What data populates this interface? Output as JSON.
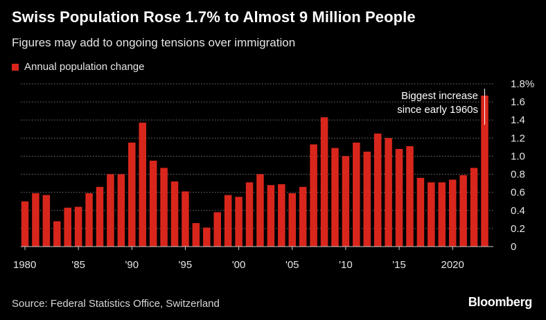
{
  "header": {
    "title": "Swiss Population Rose 1.7% to Almost 9 Million People",
    "subtitle": "Figures may add to ongoing tensions over immigration"
  },
  "footer": {
    "source": "Source: Federal Statistics Office, Switzerland",
    "brand": "Bloomberg"
  },
  "colors": {
    "bar": "#d9261c",
    "grid": "#777777",
    "axis": "#cccccc"
  },
  "chart_data": {
    "type": "bar",
    "title": "Swiss Population Rose 1.7% to Almost 9 Million People",
    "series": [
      {
        "name": "Annual population change",
        "x": [
          1980,
          1981,
          1982,
          1983,
          1984,
          1985,
          1986,
          1987,
          1988,
          1989,
          1990,
          1991,
          1992,
          1993,
          1994,
          1995,
          1996,
          1997,
          1998,
          1999,
          2000,
          2001,
          2002,
          2003,
          2004,
          2005,
          2006,
          2007,
          2008,
          2009,
          2010,
          2011,
          2012,
          2013,
          2014,
          2015,
          2016,
          2017,
          2018,
          2019,
          2020,
          2021,
          2022,
          2023
        ],
        "values": [
          0.5,
          0.59,
          0.57,
          0.28,
          0.43,
          0.44,
          0.59,
          0.66,
          0.8,
          0.8,
          1.15,
          1.37,
          0.95,
          0.87,
          0.72,
          0.61,
          0.26,
          0.21,
          0.38,
          0.57,
          0.55,
          0.71,
          0.8,
          0.68,
          0.69,
          0.59,
          0.66,
          1.13,
          1.43,
          1.09,
          1.0,
          1.15,
          1.05,
          1.25,
          1.2,
          1.08,
          1.11,
          0.76,
          0.71,
          0.71,
          0.74,
          0.79,
          0.87,
          1.67
        ]
      }
    ],
    "y_axis": {
      "min": 0,
      "max": 1.8,
      "step": 0.2,
      "side": "right",
      "tick_labels": [
        "0",
        "0.2",
        "0.4",
        "0.6",
        "0.8",
        "1.0",
        "1.2",
        "1.4",
        "1.6",
        "1.8%"
      ]
    },
    "x_axis": {
      "tick_years": [
        1980,
        1985,
        1990,
        1995,
        2000,
        2005,
        2010,
        2015,
        2020
      ],
      "tick_labels": [
        "1980",
        "'85",
        "'90",
        "'95",
        "'00",
        "'05",
        "'10",
        "'15",
        "2020"
      ]
    },
    "annotation": {
      "year": 2023,
      "lines": [
        "Biggest increase",
        "since early 1960s"
      ]
    },
    "grid": true,
    "legend": "top-left"
  }
}
